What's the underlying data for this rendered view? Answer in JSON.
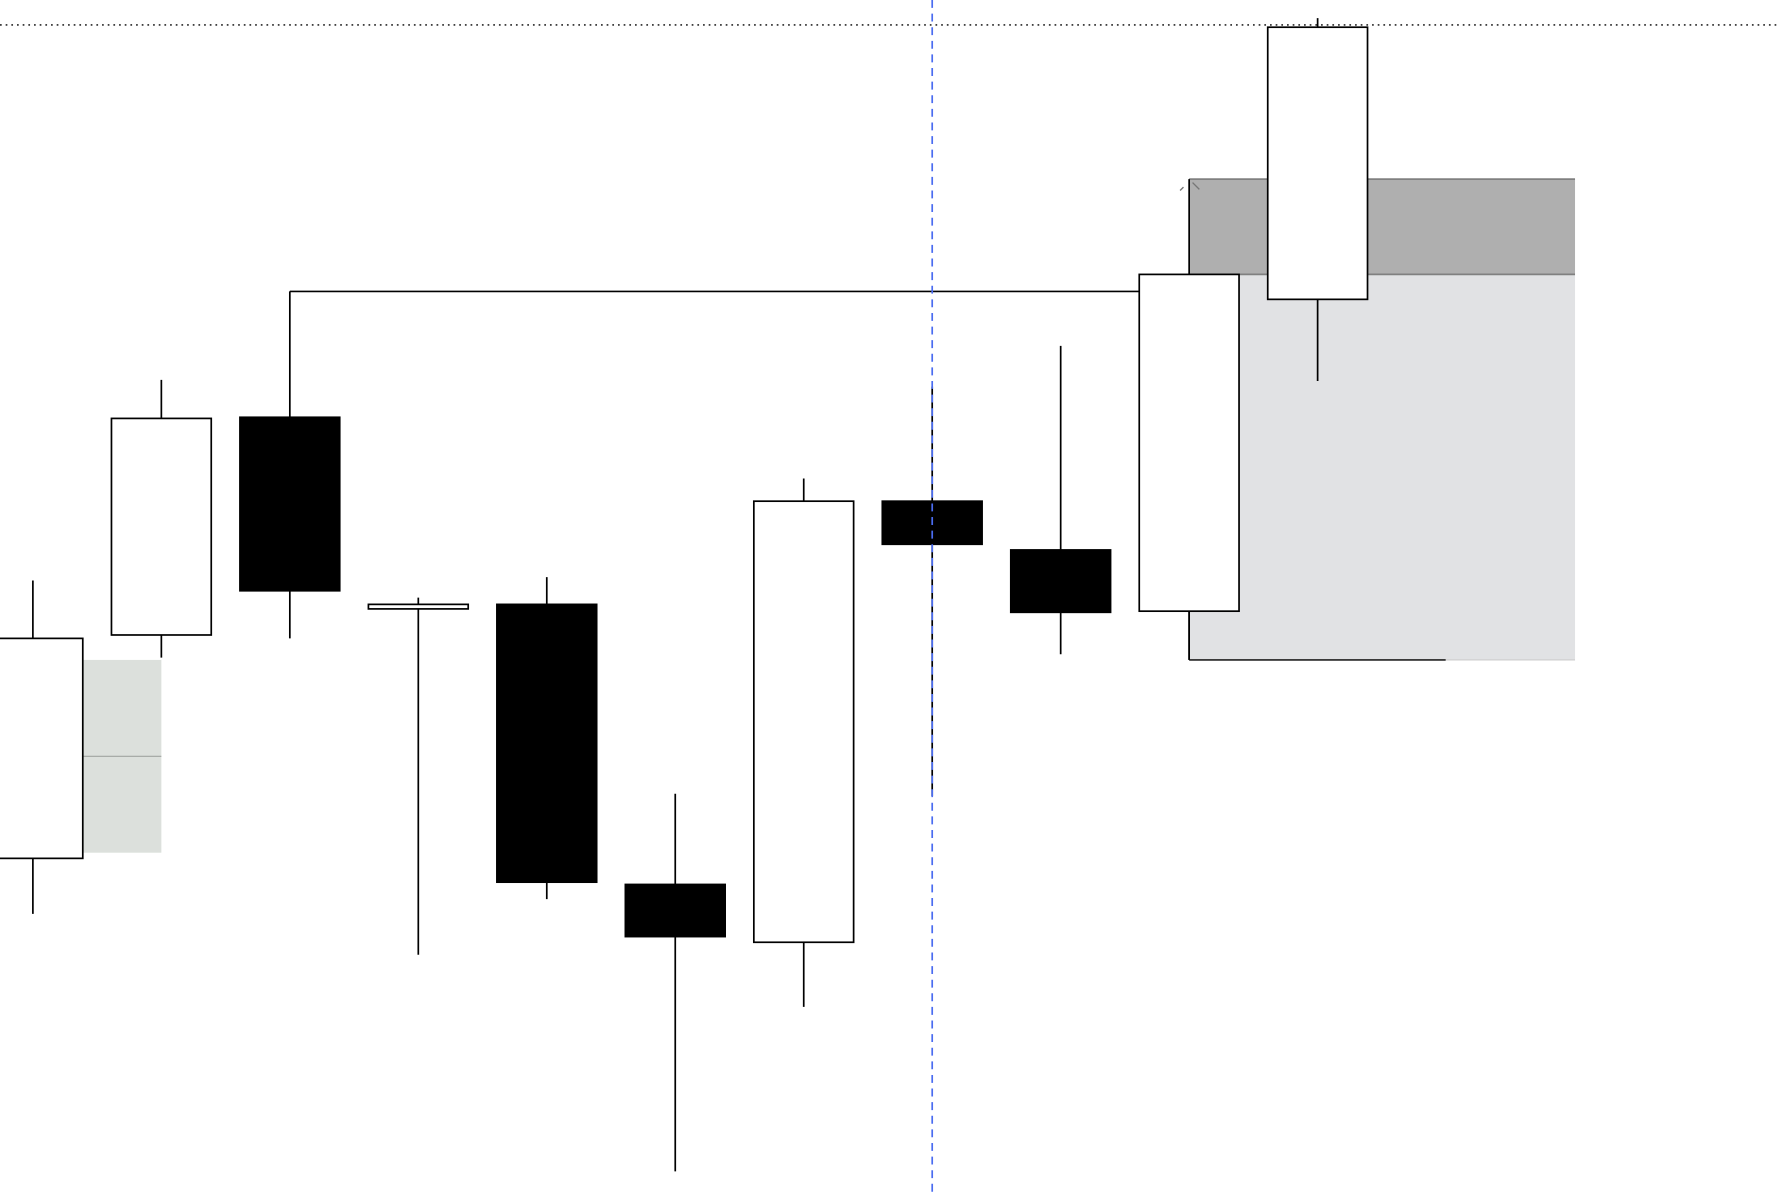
{
  "chart_data": {
    "type": "candlestick",
    "title": "",
    "xlabel": "",
    "ylabel": "",
    "axes_visible": false,
    "grid": false,
    "colors": {
      "bullish_body": "#ffffff",
      "bearish_body": "#000000",
      "outline": "#000000",
      "supply_zone": "#afafaf",
      "supply_zone_border": "#808080",
      "range_zone": "#e1e2e4",
      "left_zone": "#dce0dc",
      "left_zone_midline": "#a0a4a0",
      "crosshair": "#4a6cf0",
      "dotted_level": "#000000"
    },
    "candles": [
      {
        "open": 29.6,
        "high": 54.1,
        "low": 24.7,
        "close": 49.0
      },
      {
        "open": 49.3,
        "high": 71.8,
        "low": 47.3,
        "close": 68.4
      },
      {
        "open": 68.5,
        "high": 79.6,
        "low": 49.0,
        "close": 53.2
      },
      {
        "open": 51.6,
        "high": 52.6,
        "low": 21.1,
        "close": 52.0
      },
      {
        "open": 52.0,
        "high": 54.4,
        "low": 26.0,
        "close": 27.5
      },
      {
        "open": 27.3,
        "high": 35.3,
        "low": 2.0,
        "close": 22.7
      },
      {
        "open": 22.2,
        "high": 63.1,
        "low": 16.5,
        "close": 61.1
      },
      {
        "open": 61.1,
        "high": 71.2,
        "low": 35.1,
        "close": 57.3
      },
      {
        "open": 56.8,
        "high": 74.8,
        "low": 47.6,
        "close": 51.3
      },
      {
        "open": 51.4,
        "high": 81.1,
        "low": 47.1,
        "close": 81.1
      },
      {
        "open": 78.9,
        "high": 103.7,
        "low": 71.7,
        "close": 102.9
      }
    ],
    "horizontal_level": {
      "price": 79.6,
      "from_candle": 2,
      "to_candle": 9
    },
    "dotted_level": {
      "price": 103.1
    },
    "crosshair_candle": 7,
    "zones": [
      {
        "name": "supply",
        "top": 89.5,
        "bottom": 81.1,
        "from_candle": 9
      },
      {
        "name": "range",
        "top": 81.1,
        "bottom": 47.1,
        "from_candle": 9
      },
      {
        "name": "left",
        "top": 47.1,
        "bottom": 30.1,
        "mid": 38.6,
        "from_candle": 0,
        "to_candle": 1
      }
    ]
  }
}
